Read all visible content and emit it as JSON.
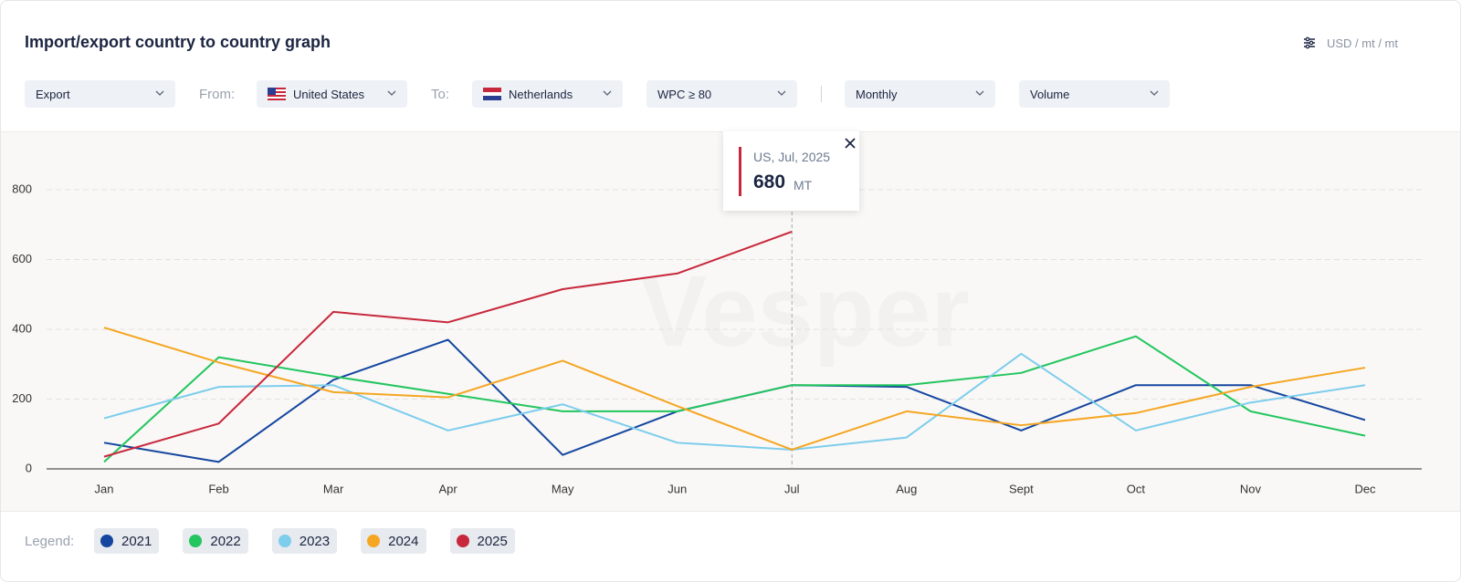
{
  "header": {
    "title": "Import/export country to country graph",
    "unit_setting": "USD / mt / mt"
  },
  "filters": {
    "direction": "Export",
    "from_label": "From:",
    "from": "United States",
    "to_label": "To:",
    "to": "Netherlands",
    "grade": "WPC ≥ 80",
    "period": "Monthly",
    "measure": "Volume"
  },
  "watermark": "Vesper",
  "tooltip": {
    "title": "US, Jul, 2025",
    "unit": "MT"
  },
  "legend_label": "Legend:",
  "chart_data": {
    "type": "line",
    "categories": [
      "Jan",
      "Feb",
      "Mar",
      "Apr",
      "May",
      "Jun",
      "Jul",
      "Aug",
      "Sept",
      "Oct",
      "Nov",
      "Dec"
    ],
    "series": [
      {
        "name": "2021",
        "color": "#1446a0",
        "values": [
          75,
          20,
          255,
          370,
          40,
          165,
          240,
          235,
          110,
          240,
          240,
          140
        ]
      },
      {
        "name": "2022",
        "color": "#22c55e",
        "values": [
          20,
          320,
          265,
          215,
          165,
          165,
          240,
          240,
          275,
          380,
          165,
          95
        ]
      },
      {
        "name": "2023",
        "color": "#7dcdec",
        "values": [
          145,
          235,
          240,
          110,
          185,
          75,
          55,
          90,
          330,
          110,
          190,
          240
        ]
      },
      {
        "name": "2024",
        "color": "#f5a623",
        "values": [
          405,
          305,
          220,
          205,
          310,
          180,
          55,
          165,
          125,
          160,
          235,
          290
        ]
      },
      {
        "name": "2025",
        "color": "#c8283c",
        "values": [
          35,
          130,
          450,
          420,
          515,
          560,
          680,
          null,
          null,
          null,
          null,
          null
        ]
      }
    ],
    "ylim": [
      0,
      900
    ],
    "yticks": [
      0,
      200,
      400,
      600,
      800
    ],
    "grid": true
  }
}
